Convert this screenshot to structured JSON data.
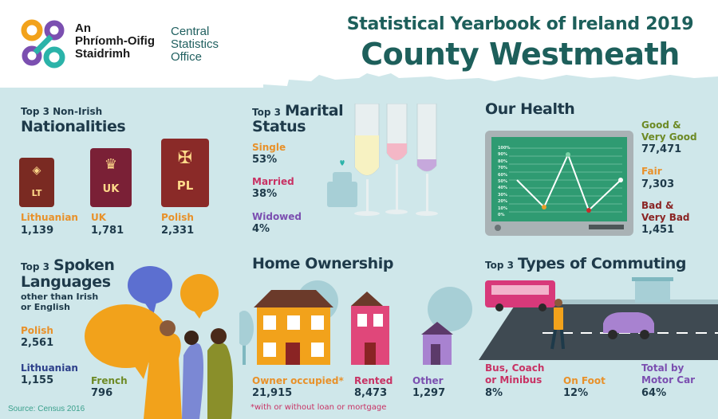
{
  "header": {
    "org_line1": "An",
    "org_line2": "Phríomh-Oifig",
    "org_line3": "Staidrimh",
    "org_en1": "Central",
    "org_en2": "Statistics",
    "org_en3": "Office",
    "yearbook": "Statistical Yearbook of Ireland 2019",
    "county": "County Westmeath"
  },
  "nationalities": {
    "title_small": "Top 3 Non-Irish",
    "title_big": "Nationalities",
    "items": [
      {
        "code": "LT",
        "label": "Lithuanian",
        "value": "1,139",
        "color": "#7a2a22"
      },
      {
        "code": "UK",
        "label": "UK",
        "value": "1,781",
        "color": "#7a2036"
      },
      {
        "code": "PL",
        "label": "Polish",
        "value": "2,331",
        "color": "#8a2a28"
      }
    ]
  },
  "marital": {
    "title_small": "Top 3",
    "title_big1": "Marital",
    "title_big2": "Status",
    "items": [
      {
        "label": "Single",
        "value": "53%"
      },
      {
        "label": "Married",
        "value": "38%"
      },
      {
        "label": "Widowed",
        "value": "4%"
      }
    ]
  },
  "health": {
    "title": "Our Health",
    "levels": [
      "100%",
      "90%",
      "80%",
      "70%",
      "60%",
      "50%",
      "40%",
      "30%",
      "20%",
      "10%",
      "0%"
    ],
    "items": [
      {
        "label1": "Good &",
        "label2": "Very Good",
        "value": "77,471"
      },
      {
        "label1": "Fair",
        "label2": "",
        "value": "7,303"
      },
      {
        "label1": "Bad &",
        "label2": "Very Bad",
        "value": "1,451"
      }
    ]
  },
  "languages": {
    "title_small": "Top 3",
    "title_big1": "Spoken",
    "title_big2": "Languages",
    "subtitle1": "other than Irish",
    "subtitle2": "or English",
    "items": [
      {
        "label": "Polish",
        "value": "2,561"
      },
      {
        "label": "Lithuanian",
        "value": "1,155"
      },
      {
        "label": "French",
        "value": "796"
      }
    ]
  },
  "home": {
    "title": "Home Ownership",
    "items": [
      {
        "label": "Owner occupied*",
        "value": "21,915"
      },
      {
        "label": "Rented",
        "value": "8,473"
      },
      {
        "label": "Other",
        "value": "1,297"
      }
    ],
    "footnote": "*with or without loan or mortgage"
  },
  "commuting": {
    "title_small": "Top 3",
    "title_big": "Types of Commuting",
    "items": [
      {
        "label1": "Bus, Coach",
        "label2": "or Minibus",
        "value": "8%"
      },
      {
        "label1": "On Foot",
        "label2": "",
        "value": "12%"
      },
      {
        "label1": "Total by",
        "label2": "Motor Car",
        "value": "64%"
      }
    ]
  },
  "source": "Source: Census 2016"
}
